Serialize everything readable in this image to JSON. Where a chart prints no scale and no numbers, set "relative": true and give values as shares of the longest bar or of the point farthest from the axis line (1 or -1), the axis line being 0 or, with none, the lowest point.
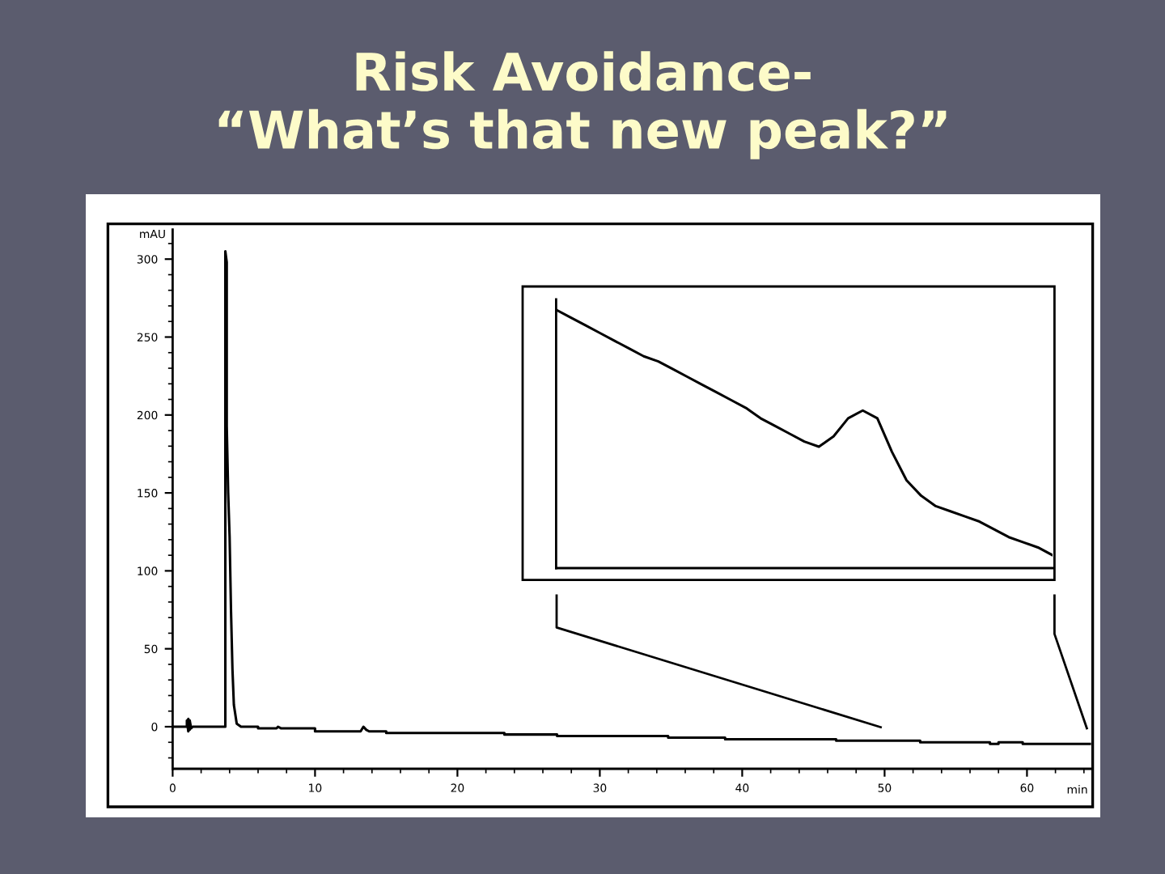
{
  "chart_data": [
    {
      "type": "line",
      "title": "Risk Avoidance-\n“What’s that new peak?”",
      "xlabel": "min",
      "ylabel": "mAU",
      "x": [
        0,
        1.0,
        1.0,
        1.1,
        1.1,
        1.2,
        1.2,
        1.3,
        1.4,
        3.7,
        3.7,
        3.8,
        3.8,
        3.9,
        4.0,
        4.1,
        4.2,
        4.3,
        4.5,
        4.8,
        6.0,
        6.0,
        7.3,
        7.4,
        7.6,
        10.0,
        10.0,
        13.2,
        13.4,
        13.6,
        13.8,
        15.0,
        15.0,
        23.3,
        23.3,
        27.0,
        27.0,
        34.8,
        34.8,
        38.8,
        38.8,
        46.6,
        46.6,
        52.5,
        52.5,
        57.4,
        57.4,
        58.0,
        58.0,
        59.7,
        59.7,
        64.5
      ],
      "series": [
        {
          "color": "#000000",
          "values": [
            0,
            0,
            4,
            -3,
            5,
            -2,
            4,
            -1,
            0,
            0,
            305,
            298,
            193,
            150,
            122,
            74,
            37,
            14,
            2,
            0,
            0,
            -1,
            -1,
            0,
            -1,
            -1,
            -3,
            -3,
            0,
            -2,
            -3,
            -3,
            -4,
            -4,
            -5,
            -5,
            -6,
            -6,
            -7,
            -7,
            -8,
            -8,
            -9,
            -9,
            -10,
            -10,
            -11,
            -11,
            -10,
            -10,
            -11,
            -11
          ]
        }
      ],
      "xlim": [
        0,
        64.5
      ],
      "ylim": [
        -27,
        319
      ],
      "xticks": [
        0,
        10,
        20,
        30,
        40,
        50,
        60
      ],
      "yticks": [
        0,
        50,
        100,
        150,
        200,
        250,
        300
      ]
    },
    {
      "type": "line",
      "relative": true,
      "categories": [
        null,
        null,
        null,
        null,
        null,
        null,
        null,
        null,
        null,
        null,
        null,
        null,
        null,
        null,
        null,
        null,
        null,
        null,
        null,
        null,
        null,
        null,
        null,
        null,
        null,
        null,
        null,
        null,
        null,
        null,
        null,
        null,
        null,
        null,
        null
      ],
      "series": [
        {
          "color": "#000000",
          "values": [
            1.0,
            0.97,
            0.94,
            0.91,
            0.88,
            0.85,
            0.82,
            0.8,
            0.77,
            0.74,
            0.71,
            0.68,
            0.65,
            0.62,
            0.58,
            0.55,
            0.52,
            0.49,
            0.47,
            0.51,
            0.58,
            0.61,
            0.58,
            0.45,
            0.34,
            0.28,
            0.24,
            0.22,
            0.2,
            0.18,
            0.15,
            0.12,
            0.1,
            0.08,
            0.05
          ]
        }
      ]
    }
  ]
}
